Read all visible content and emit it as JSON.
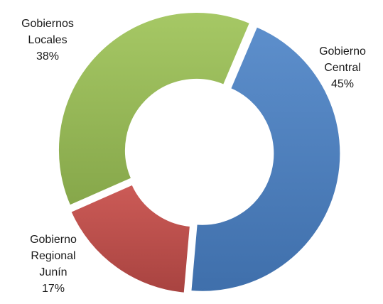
{
  "chart_data": {
    "type": "pie",
    "variant": "donut",
    "title": "",
    "categories": [
      "Gobierno Central",
      "Gobierno Regional Junín",
      "Gobiernos Locales"
    ],
    "values": [
      45,
      17,
      38
    ],
    "unit": "%",
    "colors": [
      "#4f81bd",
      "#c0504d",
      "#9bbb59"
    ],
    "start_angle_deg": 23,
    "exploded": true,
    "legend": "none",
    "data_labels": [
      {
        "lines": [
          "Gobierno",
          "Central"
        ],
        "value": "45%"
      },
      {
        "lines": [
          "Gobierno",
          "Regional",
          "Junín"
        ],
        "value": "17%"
      },
      {
        "lines": [
          "Gobiernos",
          "Locales"
        ],
        "value": "38%"
      }
    ]
  }
}
